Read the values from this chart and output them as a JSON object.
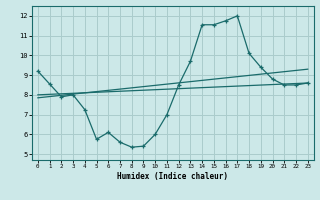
{
  "xlabel": "Humidex (Indice chaleur)",
  "bg_color": "#cce8e8",
  "grid_color": "#aacccc",
  "line_color": "#1a6b6b",
  "xlim": [
    -0.5,
    23.5
  ],
  "ylim": [
    4.7,
    12.5
  ],
  "xticks": [
    0,
    1,
    2,
    3,
    4,
    5,
    6,
    7,
    8,
    9,
    10,
    11,
    12,
    13,
    14,
    15,
    16,
    17,
    18,
    19,
    20,
    21,
    22,
    23
  ],
  "yticks": [
    5,
    6,
    7,
    8,
    9,
    10,
    11,
    12
  ],
  "main_x": [
    0,
    1,
    2,
    3,
    4,
    5,
    6,
    7,
    8,
    9,
    10,
    11,
    12,
    13,
    14,
    15,
    16,
    17,
    18,
    19,
    20,
    21,
    22,
    23
  ],
  "main_y": [
    9.2,
    8.55,
    7.9,
    8.0,
    7.25,
    5.75,
    6.1,
    5.6,
    5.35,
    5.4,
    6.0,
    7.0,
    8.5,
    9.7,
    11.55,
    11.55,
    11.75,
    12.0,
    10.1,
    9.4,
    8.8,
    8.5,
    8.5,
    8.6
  ],
  "line2_x": [
    0,
    23
  ],
  "line2_y": [
    8.0,
    8.6
  ],
  "line3_x": [
    0,
    23
  ],
  "line3_y": [
    7.85,
    9.3
  ],
  "xlabel_fontsize": 5.5,
  "tick_fontsize_x": 4.2,
  "tick_fontsize_y": 5.0
}
